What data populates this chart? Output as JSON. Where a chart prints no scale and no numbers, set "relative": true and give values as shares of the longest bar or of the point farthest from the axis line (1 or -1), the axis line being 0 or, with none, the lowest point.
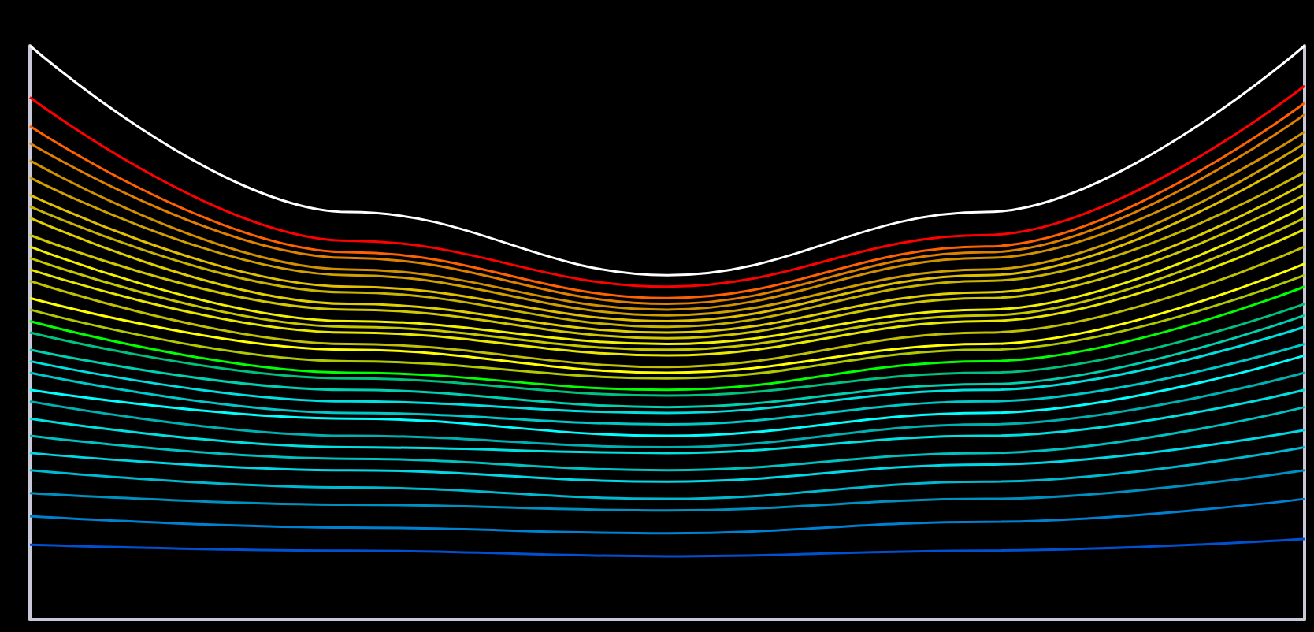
{
  "chart_data": {
    "type": "line",
    "relative": true,
    "marker": "none",
    "categories": [
      null,
      null,
      null,
      null,
      null
    ],
    "series": [
      {
        "color": "#ffffff",
        "values": [
          1.0,
          0.71,
          0.6,
          0.71,
          1.0
        ]
      },
      {
        "color": "#ff0000",
        "values": [
          0.91,
          0.66,
          0.58,
          0.67,
          0.93
        ]
      },
      {
        "color": "#ff6000",
        "values": [
          0.86,
          0.64,
          0.56,
          0.65,
          0.9
        ]
      },
      {
        "color": "#e08000",
        "values": [
          0.83,
          0.63,
          0.55,
          0.64,
          0.88
        ]
      },
      {
        "color": "#d09000",
        "values": [
          0.8,
          0.61,
          0.54,
          0.63,
          0.85
        ]
      },
      {
        "color": "#d0a000",
        "values": [
          0.77,
          0.6,
          0.53,
          0.61,
          0.83
        ]
      },
      {
        "color": "#e0c000",
        "values": [
          0.74,
          0.58,
          0.52,
          0.6,
          0.81
        ]
      },
      {
        "color": "#c8b400",
        "values": [
          0.72,
          0.57,
          0.51,
          0.59,
          0.78
        ]
      },
      {
        "color": "#e0d000",
        "values": [
          0.7,
          0.55,
          0.5,
          0.57,
          0.76
        ]
      },
      {
        "color": "#d0c800",
        "values": [
          0.67,
          0.54,
          0.49,
          0.56,
          0.74
        ]
      },
      {
        "color": "#f0f000",
        "values": [
          0.65,
          0.52,
          0.48,
          0.54,
          0.72
        ]
      },
      {
        "color": "#c8c800",
        "values": [
          0.63,
          0.51,
          0.47,
          0.53,
          0.7
        ]
      },
      {
        "color": "#e8e800",
        "values": [
          0.61,
          0.5,
          0.46,
          0.52,
          0.68
        ]
      },
      {
        "color": "#c0c000",
        "values": [
          0.59,
          0.48,
          0.44,
          0.5,
          0.65
        ]
      },
      {
        "color": "#ffff00",
        "values": [
          0.56,
          0.47,
          0.43,
          0.48,
          0.62
        ]
      },
      {
        "color": "#b0c800",
        "values": [
          0.54,
          0.45,
          0.42,
          0.47,
          0.6
        ]
      },
      {
        "color": "#00ff00",
        "values": [
          0.52,
          0.43,
          0.4,
          0.45,
          0.58
        ]
      },
      {
        "color": "#00c080",
        "values": [
          0.5,
          0.42,
          0.39,
          0.43,
          0.55
        ]
      },
      {
        "color": "#00d0b0",
        "values": [
          0.47,
          0.4,
          0.37,
          0.41,
          0.53
        ]
      },
      {
        "color": "#00e0e0",
        "values": [
          0.45,
          0.38,
          0.36,
          0.4,
          0.51
        ]
      },
      {
        "color": "#00c8c8",
        "values": [
          0.43,
          0.36,
          0.34,
          0.38,
          0.48
        ]
      },
      {
        "color": "#00ffff",
        "values": [
          0.4,
          0.35,
          0.32,
          0.36,
          0.46
        ]
      },
      {
        "color": "#00b0b0",
        "values": [
          0.38,
          0.32,
          0.3,
          0.34,
          0.43
        ]
      },
      {
        "color": "#00e0e0",
        "values": [
          0.35,
          0.3,
          0.29,
          0.32,
          0.4
        ]
      },
      {
        "color": "#00c0c0",
        "values": [
          0.32,
          0.28,
          0.26,
          0.29,
          0.37
        ]
      },
      {
        "color": "#00d8e8",
        "values": [
          0.29,
          0.26,
          0.24,
          0.27,
          0.33
        ]
      },
      {
        "color": "#00b8d0",
        "values": [
          0.26,
          0.23,
          0.21,
          0.24,
          0.3
        ]
      },
      {
        "color": "#0090c0",
        "values": [
          0.22,
          0.2,
          0.19,
          0.21,
          0.26
        ]
      },
      {
        "color": "#0080d0",
        "values": [
          0.18,
          0.16,
          0.15,
          0.17,
          0.21
        ]
      },
      {
        "color": "#0050d0",
        "values": [
          0.13,
          0.12,
          0.11,
          0.12,
          0.14
        ]
      }
    ]
  }
}
